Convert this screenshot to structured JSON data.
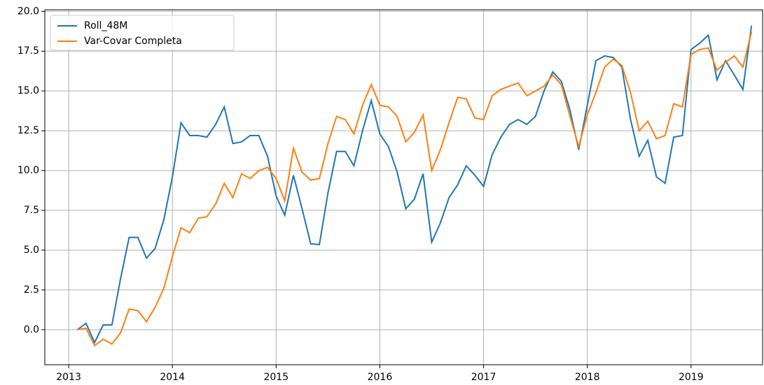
{
  "chart_data": {
    "type": "line",
    "x": [
      2013.083,
      2013.167,
      2013.25,
      2013.333,
      2013.417,
      2013.5,
      2013.583,
      2013.667,
      2013.75,
      2013.833,
      2013.917,
      2014,
      2014.083,
      2014.167,
      2014.25,
      2014.333,
      2014.417,
      2014.5,
      2014.583,
      2014.667,
      2014.75,
      2014.833,
      2014.917,
      2015,
      2015.083,
      2015.167,
      2015.25,
      2015.333,
      2015.417,
      2015.5,
      2015.583,
      2015.667,
      2015.75,
      2015.833,
      2015.917,
      2016,
      2016.083,
      2016.167,
      2016.25,
      2016.333,
      2016.417,
      2016.5,
      2016.583,
      2016.667,
      2016.75,
      2016.833,
      2016.917,
      2017,
      2017.083,
      2017.167,
      2017.25,
      2017.333,
      2017.417,
      2017.5,
      2017.583,
      2017.667,
      2017.75,
      2017.833,
      2017.917,
      2018,
      2018.083,
      2018.167,
      2018.25,
      2018.333,
      2018.417,
      2018.5,
      2018.583,
      2018.667,
      2018.75,
      2018.833,
      2018.917,
      2019,
      2019.083,
      2019.167,
      2019.25,
      2019.333,
      2019.417,
      2019.5,
      2019.583
    ],
    "series": [
      {
        "name": "Roll_48M",
        "color": "#1f77b4",
        "values": [
          0,
          0.4,
          -0.8,
          0.3,
          0.3,
          3.2,
          5.8,
          5.8,
          4.5,
          5.1,
          6.9,
          9.6,
          13.0,
          12.2,
          12.2,
          12.1,
          12.9,
          14.0,
          11.7,
          11.8,
          12.2,
          12.2,
          10.9,
          8.4,
          7.2,
          9.7,
          7.6,
          5.4,
          5.35,
          8.6,
          11.2,
          11.2,
          10.3,
          12.5,
          14.4,
          12.3,
          11.5,
          9.9,
          7.6,
          8.2,
          9.8,
          5.5,
          6.7,
          8.3,
          9.1,
          10.3,
          9.7,
          9.0,
          11.0,
          12.1,
          12.9,
          13.2,
          12.9,
          13.4,
          15.0,
          16.2,
          15.6,
          13.8,
          11.3,
          14.1,
          16.9,
          17.2,
          17.1,
          16.5,
          13.2,
          10.9,
          11.9,
          9.6,
          9.2,
          12.1,
          12.2,
          17.6,
          18.0,
          18.5,
          15.7,
          16.9,
          16.0,
          15.1,
          19.1
        ]
      },
      {
        "name": "Var-Covar Completa",
        "color": "#ff7f0e",
        "values": [
          0,
          0.1,
          -1.0,
          -0.6,
          -0.9,
          -0.2,
          1.3,
          1.2,
          0.5,
          1.4,
          2.6,
          4.6,
          6.4,
          6.1,
          7.0,
          7.1,
          7.9,
          9.2,
          8.3,
          9.8,
          9.5,
          10.0,
          10.2,
          9.5,
          8.1,
          11.4,
          9.9,
          9.4,
          9.5,
          11.7,
          13.4,
          13.2,
          12.3,
          14.1,
          15.4,
          14.1,
          14.0,
          13.4,
          11.8,
          12.4,
          13.5,
          10.0,
          11.3,
          13.0,
          14.6,
          14.5,
          13.3,
          13.2,
          14.7,
          15.1,
          15.3,
          15.5,
          14.7,
          15.0,
          15.3,
          16.0,
          15.4,
          13.4,
          11.5,
          13.5,
          14.9,
          16.5,
          17.0,
          16.6,
          14.9,
          12.5,
          13.1,
          12.0,
          12.2,
          14.2,
          14.0,
          17.3,
          17.6,
          17.7,
          16.3,
          16.8,
          17.2,
          16.5,
          18.7
        ]
      }
    ],
    "xlim": [
      2012.77,
      2019.69
    ],
    "xticks": [
      2013,
      2014,
      2015,
      2016,
      2017,
      2018,
      2019
    ],
    "ylim": [
      -2.2,
      20.1
    ],
    "yticks": [
      {
        "value": 0,
        "label": "0.0"
      },
      {
        "value": 2.5,
        "label": "2.5"
      },
      {
        "value": 5,
        "label": "5.0"
      },
      {
        "value": 7.5,
        "label": "7.5"
      },
      {
        "value": 10,
        "label": "10.0"
      },
      {
        "value": 12.5,
        "label": "12.5"
      },
      {
        "value": 15,
        "label": "15.0"
      },
      {
        "value": 17.5,
        "label": "17.5"
      },
      {
        "value": 20,
        "label": "20.0"
      }
    ],
    "grid": true,
    "legend": "upper left"
  }
}
